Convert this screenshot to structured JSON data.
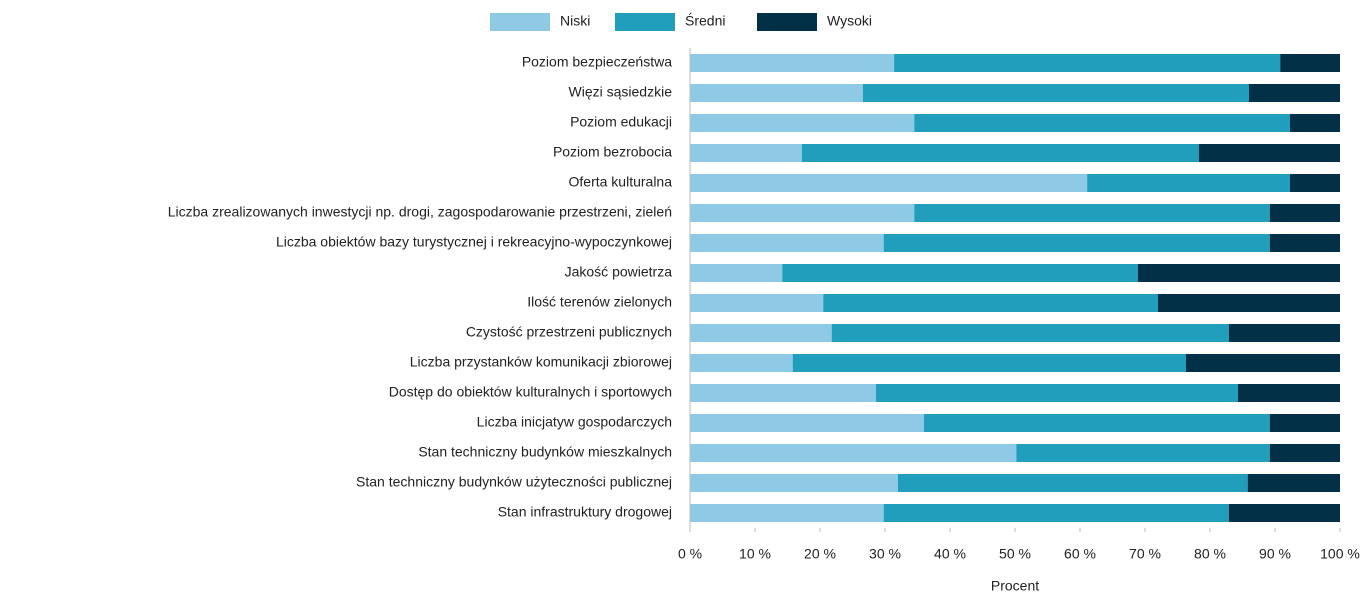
{
  "chart_data": {
    "type": "stacked_barh",
    "x_label": "Procent",
    "categories": [
      "Poziom bezpieczeństwa",
      "Więzi sąsiedzkie",
      "Poziom edukacji",
      "Poziom bezrobocia",
      "Oferta kulturalna",
      "Liczba zrealizowanych inwestycji np. drogi, zagospodarowanie przestrzeni, zieleń",
      "Liczba obiektów bazy turystycznej i rekreacyjno-wypoczynkowej",
      "Jakość powietrza",
      "Ilość terenów zielonych",
      "Czystość przestrzeni publicznych",
      "Liczba przystanków komunikacji zbiorowej",
      "Dostęp do obiektów kulturalnych i sportowych",
      "Liczba inicjatyw gospodarczych",
      "Stan techniczny budynków mieszkalnych",
      "Stan techniczny budynków użyteczności publicznej",
      "Stan infrastruktury drogowej"
    ],
    "series": [
      {
        "name": "Niski",
        "color": "#8ecae6",
        "values": [
          31.4,
          26.6,
          34.5,
          17.2,
          61.1,
          34.5,
          29.8,
          14.2,
          20.5,
          21.8,
          15.8,
          28.6,
          36,
          50.2,
          32,
          29.8
        ]
      },
      {
        "name": "Średni",
        "color": "#219ebc",
        "values": [
          59.4,
          59.4,
          57.8,
          61.1,
          31.2,
          54.7,
          59.4,
          54.7,
          51.5,
          61.1,
          60.5,
          55.7,
          53.2,
          39,
          53.8,
          53.1
        ]
      },
      {
        "name": "Wysoki",
        "color": "#023047",
        "values": [
          9.2,
          14,
          7.7,
          21.7,
          7.7,
          10.8,
          10.8,
          31.1,
          28,
          17.1,
          23.7,
          15.7,
          10.8,
          10.8,
          14.2,
          17.1
        ]
      }
    ],
    "xlim": [
      0,
      100
    ],
    "xticks": [
      {
        "value": 0,
        "label": "0 %"
      },
      {
        "value": 10,
        "label": "10 %"
      },
      {
        "value": 20,
        "label": "20 %"
      },
      {
        "value": 30,
        "label": "30 %"
      },
      {
        "value": 40,
        "label": "40 %"
      },
      {
        "value": 50,
        "label": "50 %"
      },
      {
        "value": 60,
        "label": "60 %"
      },
      {
        "value": 70,
        "label": "70 %"
      },
      {
        "value": 80,
        "label": "80 %"
      },
      {
        "value": 90,
        "label": "90 %"
      },
      {
        "value": 100,
        "label": "100 %"
      }
    ],
    "legend": "top"
  }
}
